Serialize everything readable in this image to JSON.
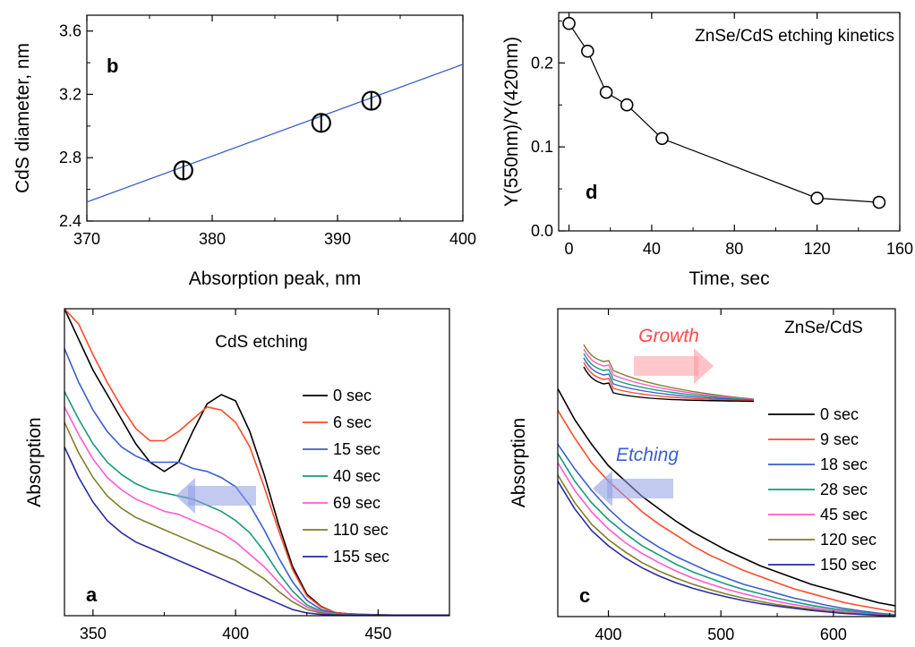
{
  "chart_data": [
    {
      "panel": "b",
      "type": "scatter",
      "xlabel": "Absorption peak, nm",
      "ylabel": "CdS diameter, nm",
      "xlim": [
        370,
        400
      ],
      "ylim": [
        2.4,
        3.7
      ],
      "xticks": [
        "370",
        "380",
        "390",
        "400"
      ],
      "yticks": [
        "2.4",
        "2.8",
        "3.2",
        "3.6"
      ],
      "points": [
        {
          "x": 377.7,
          "y": 2.72
        },
        {
          "x": 388.7,
          "y": 3.02
        },
        {
          "x": 392.7,
          "y": 3.16
        }
      ],
      "fit_line": {
        "x": [
          370,
          400
        ],
        "y": [
          2.52,
          3.39
        ],
        "color": "#3a5fcd"
      }
    },
    {
      "panel": "d",
      "type": "line",
      "title": "ZnSe/CdS etching kinetics",
      "xlabel": "Time, sec",
      "ylabel": "Y(550nm)/Y(420nm)",
      "xlim": [
        -5,
        160
      ],
      "ylim": [
        0,
        0.26
      ],
      "xticks": [
        "0",
        "40",
        "80",
        "120",
        "160"
      ],
      "yticks": [
        "0.0",
        "0.1",
        "0.2"
      ],
      "x": [
        0,
        9,
        18,
        28,
        45,
        120,
        150
      ],
      "y": [
        0.247,
        0.214,
        0.165,
        0.15,
        0.11,
        0.039,
        0.034
      ]
    },
    {
      "panel": "a",
      "type": "line",
      "title": "CdS etching",
      "xlabel": "",
      "ylabel": "Absorption",
      "xlim": [
        340,
        475
      ],
      "ylim": [
        0,
        1.0
      ],
      "xticks": [
        "350",
        "400",
        "450"
      ],
      "x": [
        340,
        345,
        350,
        355,
        360,
        365,
        370,
        375,
        380,
        385,
        390,
        395,
        400,
        405,
        410,
        415,
        420,
        425,
        430,
        435,
        440,
        445,
        450,
        455,
        460,
        465,
        470,
        475
      ],
      "series": [
        {
          "name": "0 sec",
          "color": "#000000",
          "values": [
            1.0,
            0.9,
            0.8,
            0.72,
            0.64,
            0.56,
            0.5,
            0.47,
            0.5,
            0.6,
            0.69,
            0.72,
            0.7,
            0.6,
            0.46,
            0.3,
            0.16,
            0.07,
            0.03,
            0.01,
            0.006,
            0.004,
            0.003,
            0.002,
            0.002,
            0.002,
            0.002,
            0.002
          ]
        },
        {
          "name": "6 sec",
          "color": "#ff4a2a",
          "values": [
            1.0,
            0.95,
            0.85,
            0.76,
            0.68,
            0.61,
            0.57,
            0.57,
            0.6,
            0.64,
            0.68,
            0.67,
            0.63,
            0.55,
            0.42,
            0.28,
            0.15,
            0.065,
            0.028,
            0.01,
            0.006,
            0.004,
            0.003,
            0.002,
            0.002,
            0.002,
            0.002,
            0.002
          ]
        },
        {
          "name": "15 sec",
          "color": "#3a5fcd",
          "values": [
            0.87,
            0.76,
            0.67,
            0.6,
            0.55,
            0.52,
            0.5,
            0.5,
            0.5,
            0.48,
            0.47,
            0.45,
            0.42,
            0.36,
            0.28,
            0.19,
            0.11,
            0.05,
            0.02,
            0.008,
            0.005,
            0.003,
            0.002,
            0.002,
            0.002,
            0.002,
            0.002,
            0.002
          ]
        },
        {
          "name": "40 sec",
          "color": "#1a9a7a",
          "values": [
            0.73,
            0.64,
            0.56,
            0.5,
            0.46,
            0.43,
            0.41,
            0.4,
            0.39,
            0.38,
            0.36,
            0.34,
            0.31,
            0.27,
            0.21,
            0.14,
            0.08,
            0.035,
            0.015,
            0.006,
            0.004,
            0.003,
            0.002,
            0.002,
            0.002,
            0.002,
            0.002,
            0.002
          ]
        },
        {
          "name": "69 sec",
          "color": "#ff5ad0",
          "values": [
            0.68,
            0.59,
            0.51,
            0.45,
            0.41,
            0.38,
            0.36,
            0.34,
            0.33,
            0.31,
            0.29,
            0.27,
            0.24,
            0.2,
            0.16,
            0.11,
            0.06,
            0.028,
            0.012,
            0.005,
            0.003,
            0.002,
            0.002,
            0.002,
            0.002,
            0.002,
            0.002,
            0.002
          ]
        },
        {
          "name": "110 sec",
          "color": "#7f7f2a",
          "values": [
            0.63,
            0.53,
            0.45,
            0.39,
            0.35,
            0.32,
            0.3,
            0.28,
            0.26,
            0.24,
            0.22,
            0.2,
            0.18,
            0.15,
            0.12,
            0.08,
            0.045,
            0.02,
            0.009,
            0.004,
            0.003,
            0.002,
            0.002,
            0.002,
            0.002,
            0.002,
            0.002,
            0.002
          ]
        },
        {
          "name": "155 sec",
          "color": "#2a2aa0",
          "values": [
            0.55,
            0.45,
            0.37,
            0.31,
            0.27,
            0.24,
            0.22,
            0.2,
            0.18,
            0.16,
            0.14,
            0.12,
            0.1,
            0.08,
            0.06,
            0.04,
            0.02,
            0.009,
            0.004,
            0.002,
            0.002,
            0.002,
            0.002,
            0.002,
            0.002,
            0.002,
            0.002,
            0.002
          ]
        }
      ],
      "arrow": {
        "color": "#8f9ee6"
      },
      "legend_placement": "right"
    },
    {
      "panel": "c",
      "type": "line",
      "title": "ZnSe/CdS",
      "xlabel": "",
      "ylabel": "Absorption",
      "xlim": [
        355,
        655
      ],
      "ylim": [
        0,
        1.0
      ],
      "xticks": [
        "400",
        "500",
        "600"
      ],
      "x": [
        355,
        370,
        385,
        400,
        415,
        430,
        445,
        460,
        475,
        490,
        505,
        520,
        535,
        550,
        565,
        580,
        595,
        610,
        625,
        640,
        655
      ],
      "series": [
        {
          "name": "0 sec",
          "color": "#000000",
          "values": [
            0.74,
            0.64,
            0.56,
            0.49,
            0.44,
            0.39,
            0.35,
            0.31,
            0.275,
            0.245,
            0.215,
            0.19,
            0.165,
            0.145,
            0.125,
            0.105,
            0.09,
            0.075,
            0.06,
            0.045,
            0.035
          ]
        },
        {
          "name": "9 sec",
          "color": "#ff4a2a",
          "values": [
            0.67,
            0.58,
            0.5,
            0.44,
            0.39,
            0.34,
            0.3,
            0.265,
            0.23,
            0.2,
            0.175,
            0.15,
            0.13,
            0.11,
            0.09,
            0.075,
            0.06,
            0.045,
            0.035,
            0.025,
            0.015
          ]
        },
        {
          "name": "18 sec",
          "color": "#3a5fcd",
          "values": [
            0.56,
            0.48,
            0.41,
            0.35,
            0.3,
            0.26,
            0.225,
            0.195,
            0.17,
            0.145,
            0.125,
            0.105,
            0.09,
            0.075,
            0.06,
            0.048,
            0.036,
            0.026,
            0.018,
            0.011,
            0.006
          ]
        },
        {
          "name": "28 sec",
          "color": "#1a9a7a",
          "values": [
            0.53,
            0.44,
            0.37,
            0.315,
            0.27,
            0.23,
            0.2,
            0.17,
            0.145,
            0.125,
            0.105,
            0.088,
            0.074,
            0.06,
            0.048,
            0.037,
            0.028,
            0.02,
            0.013,
            0.008,
            0.004
          ]
        },
        {
          "name": "45 sec",
          "color": "#ff5ad0",
          "values": [
            0.5,
            0.41,
            0.34,
            0.285,
            0.24,
            0.205,
            0.175,
            0.148,
            0.125,
            0.106,
            0.089,
            0.074,
            0.061,
            0.049,
            0.039,
            0.03,
            0.022,
            0.015,
            0.01,
            0.006,
            0.003
          ]
        },
        {
          "name": "120 sec",
          "color": "#7f7f2a",
          "values": [
            0.46,
            0.37,
            0.3,
            0.25,
            0.21,
            0.175,
            0.148,
            0.125,
            0.105,
            0.088,
            0.073,
            0.06,
            0.049,
            0.039,
            0.031,
            0.024,
            0.017,
            0.012,
            0.008,
            0.005,
            0.003
          ]
        },
        {
          "name": "150 sec",
          "color": "#2a2aa0",
          "values": [
            0.44,
            0.35,
            0.28,
            0.23,
            0.19,
            0.158,
            0.132,
            0.11,
            0.092,
            0.077,
            0.064,
            0.052,
            0.042,
            0.034,
            0.027,
            0.02,
            0.015,
            0.01,
            0.007,
            0.004,
            0.002
          ]
        }
      ],
      "inset_label": "Growth",
      "inset_label_color": "#ff4a4a",
      "main_label": "Etching",
      "main_label_color": "#3a5fcd",
      "legend_placement": "right"
    }
  ]
}
